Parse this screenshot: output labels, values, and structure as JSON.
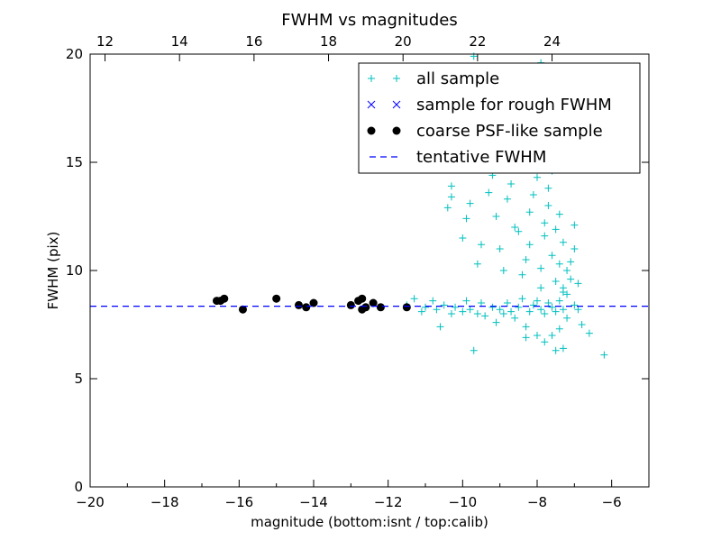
{
  "chart_data": {
    "type": "scatter",
    "title": "FWHM vs magnitudes",
    "xlabel": "magnitude (bottom:isnt / top:calib)",
    "ylabel": "FWHM (pix)",
    "xlim": [
      -20,
      -5
    ],
    "ylim": [
      0,
      20
    ],
    "x_ticks": [
      -20,
      -18,
      -16,
      -14,
      -12,
      -10,
      -8,
      -6
    ],
    "x_tick_labels": [
      "−20",
      "−18",
      "−16",
      "−14",
      "−12",
      "−10",
      "−8",
      "−6"
    ],
    "y_ticks": [
      0,
      5,
      10,
      15,
      20
    ],
    "y_tick_labels": [
      "0",
      "5",
      "10",
      "15",
      "20"
    ],
    "top_axis": {
      "offset": 31.6,
      "ticks": [
        12,
        14,
        16,
        18,
        20,
        22,
        24
      ],
      "tick_labels": [
        "12",
        "14",
        "16",
        "18",
        "20",
        "22",
        "24"
      ]
    },
    "legend_position": "top-right",
    "series": [
      {
        "name": "all sample",
        "marker": "plus",
        "color": "#00bfbf",
        "points": [
          [
            -11.5,
            8.4
          ],
          [
            -11.3,
            8.7
          ],
          [
            -11.1,
            8.1
          ],
          [
            -11.0,
            8.3
          ],
          [
            -10.8,
            8.6
          ],
          [
            -10.7,
            8.2
          ],
          [
            -10.6,
            7.4
          ],
          [
            -10.5,
            8.4
          ],
          [
            -10.3,
            8.0
          ],
          [
            -10.2,
            8.3
          ],
          [
            -10.0,
            8.1
          ],
          [
            -9.9,
            8.6
          ],
          [
            -9.8,
            8.2
          ],
          [
            -9.6,
            8.0
          ],
          [
            -9.5,
            8.5
          ],
          [
            -9.4,
            7.9
          ],
          [
            -9.2,
            8.3
          ],
          [
            -9.1,
            7.6
          ],
          [
            -9.0,
            8.2
          ],
          [
            -8.9,
            8.0
          ],
          [
            -8.8,
            8.5
          ],
          [
            -8.7,
            8.1
          ],
          [
            -8.6,
            7.8
          ],
          [
            -8.5,
            8.3
          ],
          [
            -8.4,
            8.7
          ],
          [
            -8.3,
            7.4
          ],
          [
            -8.2,
            8.1
          ],
          [
            -8.1,
            8.4
          ],
          [
            -8.0,
            8.6
          ],
          [
            -7.9,
            8.2
          ],
          [
            -7.8,
            8.0
          ],
          [
            -7.7,
            8.5
          ],
          [
            -7.6,
            8.3
          ],
          [
            -7.5,
            8.1
          ],
          [
            -7.4,
            8.6
          ],
          [
            -7.3,
            8.2
          ],
          [
            -7.2,
            7.8
          ],
          [
            -7.0,
            8.4
          ],
          [
            -6.9,
            8.2
          ],
          [
            -6.8,
            7.5
          ],
          [
            -10.4,
            12.9
          ],
          [
            -10.3,
            13.4
          ],
          [
            -10.3,
            13.9
          ],
          [
            -10.0,
            11.5
          ],
          [
            -9.9,
            12.4
          ],
          [
            -9.8,
            13.1
          ],
          [
            -9.6,
            10.3
          ],
          [
            -9.5,
            11.2
          ],
          [
            -9.3,
            13.6
          ],
          [
            -9.2,
            14.4
          ],
          [
            -9.1,
            12.5
          ],
          [
            -9.0,
            11.0
          ],
          [
            -8.9,
            10.0
          ],
          [
            -8.8,
            13.3
          ],
          [
            -8.7,
            14.0
          ],
          [
            -8.6,
            12.0
          ],
          [
            -8.5,
            11.8
          ],
          [
            -8.4,
            9.8
          ],
          [
            -8.3,
            10.5
          ],
          [
            -8.2,
            11.2
          ],
          [
            -8.2,
            12.7
          ],
          [
            -8.1,
            13.5
          ],
          [
            -8.0,
            14.3
          ],
          [
            -8.0,
            15.0
          ],
          [
            -7.9,
            10.1
          ],
          [
            -7.9,
            9.2
          ],
          [
            -7.8,
            11.6
          ],
          [
            -7.8,
            12.2
          ],
          [
            -7.7,
            13.0
          ],
          [
            -7.7,
            13.8
          ],
          [
            -7.6,
            14.6
          ],
          [
            -7.6,
            10.7
          ],
          [
            -7.5,
            9.5
          ],
          [
            -7.5,
            11.9
          ],
          [
            -7.4,
            12.6
          ],
          [
            -7.4,
            10.3
          ],
          [
            -7.3,
            9.0
          ],
          [
            -7.3,
            11.3
          ],
          [
            -7.2,
            10.0
          ],
          [
            -7.2,
            8.9
          ],
          [
            -7.1,
            9.6
          ],
          [
            -7.1,
            10.4
          ],
          [
            -7.0,
            11.0
          ],
          [
            -7.0,
            12.1
          ],
          [
            -6.9,
            9.4
          ],
          [
            -7.4,
            7.3
          ],
          [
            -7.6,
            7.0
          ],
          [
            -7.8,
            6.7
          ],
          [
            -8.0,
            7.0
          ],
          [
            -8.3,
            6.9
          ],
          [
            -7.5,
            6.3
          ],
          [
            -7.3,
            6.4
          ],
          [
            -6.6,
            7.1
          ],
          [
            -6.2,
            6.1
          ],
          [
            -9.7,
            6.3
          ],
          [
            -7.3,
            9.2
          ],
          [
            -9.7,
            19.9
          ],
          [
            -7.9,
            19.6
          ],
          [
            -8.4,
            18.6
          ],
          [
            -8.1,
            18.0
          ],
          [
            -7.6,
            17.2
          ],
          [
            -7.7,
            16.5
          ],
          [
            -8.0,
            15.8
          ],
          [
            -7.5,
            15.4
          ],
          [
            -9.0,
            15.1
          ],
          [
            -7.4,
            14.8
          ]
        ]
      },
      {
        "name": "sample for rough FWHM",
        "marker": "x",
        "color": "#0000ff",
        "points": []
      },
      {
        "name": "coarse PSF-like sample",
        "marker": "circle",
        "color": "#000000",
        "points": [
          [
            -16.6,
            8.6
          ],
          [
            -16.5,
            8.6
          ],
          [
            -16.4,
            8.7
          ],
          [
            -15.9,
            8.2
          ],
          [
            -15.0,
            8.7
          ],
          [
            -14.4,
            8.4
          ],
          [
            -14.2,
            8.3
          ],
          [
            -14.0,
            8.5
          ],
          [
            -13.0,
            8.4
          ],
          [
            -12.8,
            8.6
          ],
          [
            -12.7,
            8.7
          ],
          [
            -12.7,
            8.2
          ],
          [
            -12.6,
            8.3
          ],
          [
            -12.4,
            8.5
          ],
          [
            -12.2,
            8.3
          ],
          [
            -11.5,
            8.3
          ]
        ]
      },
      {
        "name": "tentative FWHM",
        "marker": "dashed-line",
        "color": "#0000ff",
        "y": 8.35
      }
    ]
  }
}
